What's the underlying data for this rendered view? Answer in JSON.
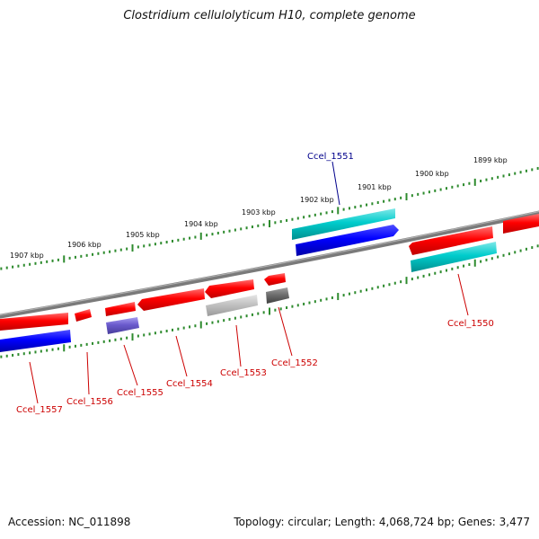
{
  "title": "Clostridium cellulolyticum H10, complete genome",
  "footer": {
    "accession": "Accession: NC_011898",
    "topology": "Topology: circular; Length: 4,068,724 bp; Genes: 3,477"
  },
  "scale_labels": [
    "1899 kbp",
    "1900 kbp",
    "1901 kbp",
    "1902 kbp",
    "1903 kbp",
    "1904 kbp",
    "1905 kbp",
    "1906 kbp",
    "1907 kbp"
  ],
  "gene_labels": [
    "Ccel_1551",
    "Ccel_1550",
    "Ccel_1552",
    "Ccel_1553",
    "Ccel_1554",
    "Ccel_1555",
    "Ccel_1556",
    "Ccel_1557"
  ],
  "colors": {
    "backbone": "#7a7a7a",
    "ticks": "#2e8b2e",
    "forward_gene": "#ff0000",
    "cyan_gene": "#00cccc",
    "blue_gene": "#0000ff",
    "purple_gene": "#6a5acd",
    "light_gray_gene": "#bdbdbd",
    "dark_gray_gene": "#6e6e6e",
    "label_top": "#00008b",
    "label_bottom": "#cc0000"
  }
}
